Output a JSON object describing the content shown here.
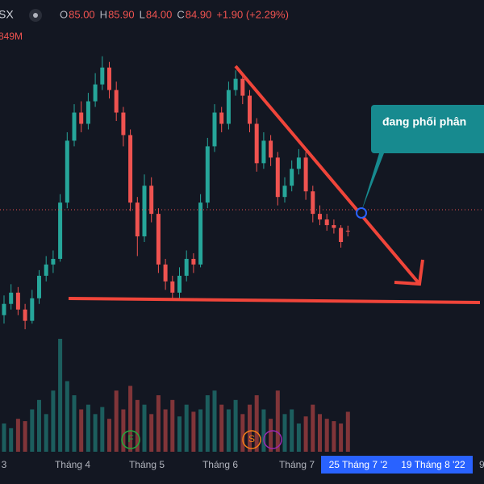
{
  "header": {
    "symbol": "SX",
    "ohlc": [
      {
        "key": "O",
        "value": "85.00"
      },
      {
        "key": "H",
        "value": "85.90"
      },
      {
        "key": "L",
        "value": "84.00"
      },
      {
        "key": "C",
        "value": "84.90"
      }
    ],
    "change": "+1.90 (+2.29%)",
    "volume_label": "849M"
  },
  "annotation": "đang phối phân",
  "events": [
    "F",
    "S"
  ],
  "chart_data": {
    "type": "candlestick",
    "up_color": "#26a69a",
    "down_color": "#ef5350",
    "ylim": [
      40,
      126
    ],
    "vlim": [
      0,
      9600
    ],
    "candles": [
      [
        70,
        73.5,
        68.5,
        72
      ],
      [
        72,
        75.5,
        71,
        74
      ],
      [
        74,
        75,
        70,
        71
      ],
      [
        71,
        72,
        67.5,
        69
      ],
      [
        69,
        74.5,
        68.5,
        73
      ],
      [
        73,
        78,
        72,
        77
      ],
      [
        77,
        80.5,
        76,
        79
      ],
      [
        79,
        81.5,
        77.5,
        80
      ],
      [
        80,
        91.5,
        79.5,
        90
      ],
      [
        90,
        102.5,
        89,
        101
      ],
      [
        101,
        107.5,
        100,
        106
      ],
      [
        106,
        108,
        102.5,
        104
      ],
      [
        104,
        109.5,
        103,
        108
      ],
      [
        108,
        113,
        107,
        111
      ],
      [
        111,
        116,
        110,
        114
      ],
      [
        114,
        115,
        108.5,
        110
      ],
      [
        110,
        111.5,
        104.5,
        106
      ],
      [
        106,
        107,
        100,
        102
      ],
      [
        102,
        103,
        88.5,
        90
      ],
      [
        90,
        91,
        80.5,
        84
      ],
      [
        84,
        95,
        83,
        93
      ],
      [
        93,
        94.5,
        86.5,
        88
      ],
      [
        88,
        89,
        77.5,
        79
      ],
      [
        79,
        80,
        74.5,
        76
      ],
      [
        76,
        77,
        73,
        74
      ],
      [
        74,
        78.5,
        73,
        77
      ],
      [
        77,
        81.5,
        76,
        80
      ],
      [
        80,
        81,
        77.5,
        79
      ],
      [
        79,
        91.5,
        78.5,
        90
      ],
      [
        90,
        101.5,
        89,
        100
      ],
      [
        100,
        107.5,
        99,
        106
      ],
      [
        106,
        107,
        102.5,
        104
      ],
      [
        104,
        111.5,
        103,
        110
      ],
      [
        110,
        113.5,
        109,
        112
      ],
      [
        112,
        113,
        107.5,
        109
      ],
      [
        109,
        110,
        102.5,
        104
      ],
      [
        104,
        105,
        95.5,
        97
      ],
      [
        97,
        102.5,
        96,
        101
      ],
      [
        101,
        102,
        96.5,
        98
      ],
      [
        98,
        99,
        89.5,
        91
      ],
      [
        91,
        94.5,
        90,
        93
      ],
      [
        93,
        97.5,
        92,
        96
      ],
      [
        96,
        99.5,
        95,
        98
      ],
      [
        98,
        99,
        90.5,
        92
      ],
      [
        92,
        93,
        86.5,
        88
      ],
      [
        88,
        89.5,
        86,
        87
      ],
      [
        87,
        88,
        85,
        86
      ],
      [
        86,
        87,
        84.5,
        85.5
      ],
      [
        85.5,
        86,
        82,
        83
      ],
      [
        85,
        85.9,
        84,
        84.9
      ]
    ],
    "volumes": [
      600,
      500,
      700,
      650,
      900,
      1100,
      800,
      1300,
      2400,
      1500,
      1200,
      900,
      1000,
      800,
      950,
      700,
      1300,
      900,
      1400,
      1100,
      1000,
      800,
      1200,
      900,
      1100,
      750,
      1000,
      850,
      900,
      1200,
      1300,
      1000,
      900,
      1100,
      800,
      1000,
      1200,
      900,
      700,
      1300,
      800,
      900,
      600,
      750,
      1000,
      800,
      700,
      650,
      600,
      849
    ],
    "x_labels": [
      "3",
      "Tháng 4",
      "Tháng 5",
      "Tháng 6",
      "Tháng 7"
    ],
    "highlight_labels": [
      "25 Tháng 7 '2",
      "19 Tháng 8 '22"
    ],
    "edge_label": "9"
  }
}
